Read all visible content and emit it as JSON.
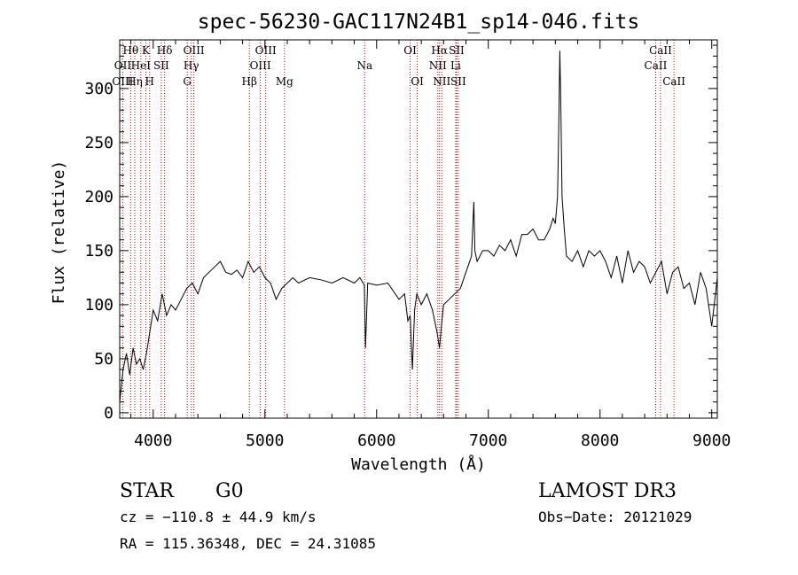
{
  "chart_data": {
    "type": "line",
    "title": "spec-56230-GAC117N24B1_sp14-046.fits",
    "xlabel": "Wavelength (Å)",
    "ylabel": "Flux (relative)",
    "xlim": [
      3700,
      9050
    ],
    "ylim": [
      -5,
      345
    ],
    "xticks": [
      4000,
      5000,
      6000,
      7000,
      8000,
      9000
    ],
    "yticks": [
      0,
      50,
      100,
      150,
      200,
      250,
      300
    ],
    "grid": false,
    "series": [
      {
        "x": [
          3700,
          3730,
          3760,
          3790,
          3820,
          3850,
          3880,
          3910,
          3940,
          3970,
          4000,
          4040,
          4080,
          4120,
          4160,
          4200,
          4250,
          4300,
          4350,
          4400,
          4450,
          4500,
          4550,
          4600,
          4650,
          4700,
          4750,
          4800,
          4850,
          4900,
          4950,
          5000,
          5050,
          5100,
          5150,
          5200,
          5250,
          5300,
          5400,
          5500,
          5600,
          5700,
          5800,
          5850,
          5890,
          5900,
          5920,
          6000,
          6100,
          6200,
          6250,
          6280,
          6300,
          6320,
          6340,
          6360,
          6400,
          6450,
          6500,
          6540,
          6563,
          6580,
          6600,
          6650,
          6700,
          6750,
          6800,
          6850,
          6870,
          6880,
          6900,
          6950,
          7000,
          7050,
          7100,
          7150,
          7200,
          7250,
          7300,
          7350,
          7400,
          7450,
          7500,
          7550,
          7580,
          7600,
          7620,
          7630,
          7640,
          7650,
          7660,
          7680,
          7700,
          7750,
          7800,
          7850,
          7900,
          7950,
          8000,
          8050,
          8100,
          8150,
          8200,
          8250,
          8300,
          8350,
          8400,
          8450,
          8500,
          8550,
          8600,
          8650,
          8700,
          8750,
          8800,
          8850,
          8900,
          8950,
          9000,
          9050
        ],
        "values": [
          10,
          40,
          55,
          35,
          60,
          45,
          50,
          40,
          55,
          75,
          95,
          85,
          110,
          90,
          100,
          95,
          105,
          115,
          120,
          110,
          125,
          130,
          135,
          140,
          130,
          128,
          132,
          125,
          140,
          130,
          135,
          125,
          120,
          105,
          115,
          120,
          125,
          120,
          125,
          123,
          120,
          125,
          120,
          125,
          118,
          60,
          120,
          118,
          120,
          105,
          110,
          85,
          90,
          40,
          95,
          110,
          100,
          110,
          95,
          75,
          60,
          80,
          100,
          105,
          110,
          115,
          130,
          145,
          195,
          150,
          140,
          150,
          150,
          145,
          155,
          150,
          160,
          145,
          165,
          165,
          170,
          160,
          160,
          170,
          180,
          175,
          200,
          260,
          335,
          280,
          200,
          170,
          145,
          140,
          150,
          135,
          150,
          145,
          150,
          140,
          125,
          145,
          120,
          150,
          130,
          140,
          135,
          120,
          130,
          140,
          110,
          130,
          135,
          115,
          120,
          100,
          130,
          115,
          80,
          125
        ]
      }
    ],
    "spectral_lines": [
      {
        "label": "Hθ",
        "wavelength": 3798,
        "row": 1
      },
      {
        "label": "K",
        "wavelength": 3934,
        "row": 1
      },
      {
        "label": "Hδ",
        "wavelength": 4102,
        "row": 1
      },
      {
        "label": "OIII",
        "wavelength": 4364,
        "row": 1
      },
      {
        "label": "OIII",
        "wavelength": 5007,
        "row": 1
      },
      {
        "label": "OI",
        "wavelength": 6300,
        "row": 1
      },
      {
        "label": "Hα",
        "wavelength": 6563,
        "row": 1
      },
      {
        "label": "SII",
        "wavelength": 6716,
        "row": 1
      },
      {
        "label": "CaII",
        "wavelength": 8542,
        "row": 1
      },
      {
        "label": "OII",
        "wavelength": 3727,
        "row": 2
      },
      {
        "label": "HeI",
        "wavelength": 3889,
        "row": 2
      },
      {
        "label": "SII",
        "wavelength": 4072,
        "row": 2
      },
      {
        "label": "Hγ",
        "wavelength": 4341,
        "row": 2
      },
      {
        "label": "OIII",
        "wavelength": 4959,
        "row": 2
      },
      {
        "label": "Na",
        "wavelength": 5893,
        "row": 2
      },
      {
        "label": "NII",
        "wavelength": 6548,
        "row": 2
      },
      {
        "label": "Li",
        "wavelength": 6708,
        "row": 2
      },
      {
        "label": "CaII",
        "wavelength": 8498,
        "row": 2
      },
      {
        "label": "OIII",
        "wavelength": 3727,
        "row": 3
      },
      {
        "label": "Hη",
        "wavelength": 3835,
        "row": 3
      },
      {
        "label": "H",
        "wavelength": 3968,
        "row": 3
      },
      {
        "label": "G",
        "wavelength": 4305,
        "row": 3
      },
      {
        "label": "Hβ",
        "wavelength": 4861,
        "row": 3
      },
      {
        "label": "Mg",
        "wavelength": 5175,
        "row": 3
      },
      {
        "label": "OI",
        "wavelength": 6364,
        "row": 3
      },
      {
        "label": "NII",
        "wavelength": 6583,
        "row": 3
      },
      {
        "label": "SII",
        "wavelength": 6731,
        "row": 3
      },
      {
        "label": "CaII",
        "wavelength": 8662,
        "row": 3
      }
    ]
  },
  "info": {
    "class": "STAR",
    "subclass": "G0",
    "survey": "LAMOST DR3",
    "cz": "cz = −110.8 ± 44.9 km/s",
    "obs_date": "Obs−Date: 20121029",
    "coords": "RA = 115.36348, DEC =  24.31085"
  },
  "colors": {
    "spectrum": "#000000",
    "line_markers": "#cc0000"
  }
}
